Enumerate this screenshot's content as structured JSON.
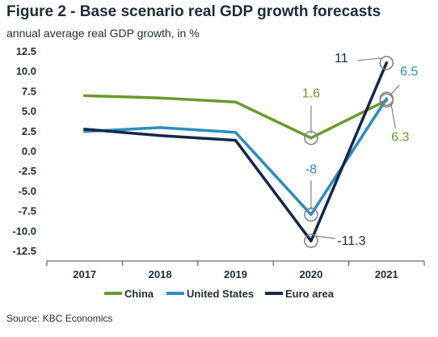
{
  "figure": {
    "title": "Figure 2 - Base scenario real GDP growth forecasts",
    "subtitle": "annual average real GDP growth, in %",
    "source": "Source: KBC Economics"
  },
  "colors": {
    "china": "#6a9a2a",
    "united_states": "#2a8dbd",
    "euro_area": "#12284a",
    "text": "#1e2b37",
    "marker_stroke": "#7f7f7f"
  },
  "chart_data": {
    "type": "line",
    "x": [
      "2017",
      "2018",
      "2019",
      "2020",
      "2021"
    ],
    "ylim": [
      -12.5,
      12.5
    ],
    "yticks": [
      "12.5",
      "10.0",
      "7.5",
      "5.0",
      "2.5",
      "0.0",
      "-2.5",
      "-5.0",
      "-7.5",
      "-10.0",
      "-12.5"
    ],
    "ytick_values": [
      12.5,
      10,
      7.5,
      5,
      2.5,
      0,
      -2.5,
      -5,
      -7.5,
      -10,
      -12.5
    ],
    "legend_position": "bottom",
    "grid": false,
    "series": [
      {
        "name": "China",
        "color": "#6a9a2a",
        "values": [
          6.9,
          6.6,
          6.1,
          1.6,
          6.3
        ]
      },
      {
        "name": "United States",
        "color": "#2a8dbd",
        "values": [
          2.4,
          2.9,
          2.3,
          -8.0,
          6.5
        ]
      },
      {
        "name": "Euro area",
        "color": "#12284a",
        "values": [
          2.7,
          1.9,
          1.3,
          -11.3,
          11.0
        ]
      }
    ],
    "annotations": [
      {
        "text": "1.6",
        "series": "China",
        "x": "2020",
        "y": 1.6
      },
      {
        "text": "-8",
        "series": "United States",
        "x": "2020",
        "y": -8.0
      },
      {
        "text": "-11.3",
        "series": "Euro area",
        "x": "2020",
        "y": -11.3
      },
      {
        "text": "11",
        "series": "Euro area",
        "x": "2021",
        "y": 11.0
      },
      {
        "text": "6.5",
        "series": "United States",
        "x": "2021",
        "y": 6.5
      },
      {
        "text": "6.3",
        "series": "China",
        "x": "2021",
        "y": 6.3
      }
    ]
  }
}
